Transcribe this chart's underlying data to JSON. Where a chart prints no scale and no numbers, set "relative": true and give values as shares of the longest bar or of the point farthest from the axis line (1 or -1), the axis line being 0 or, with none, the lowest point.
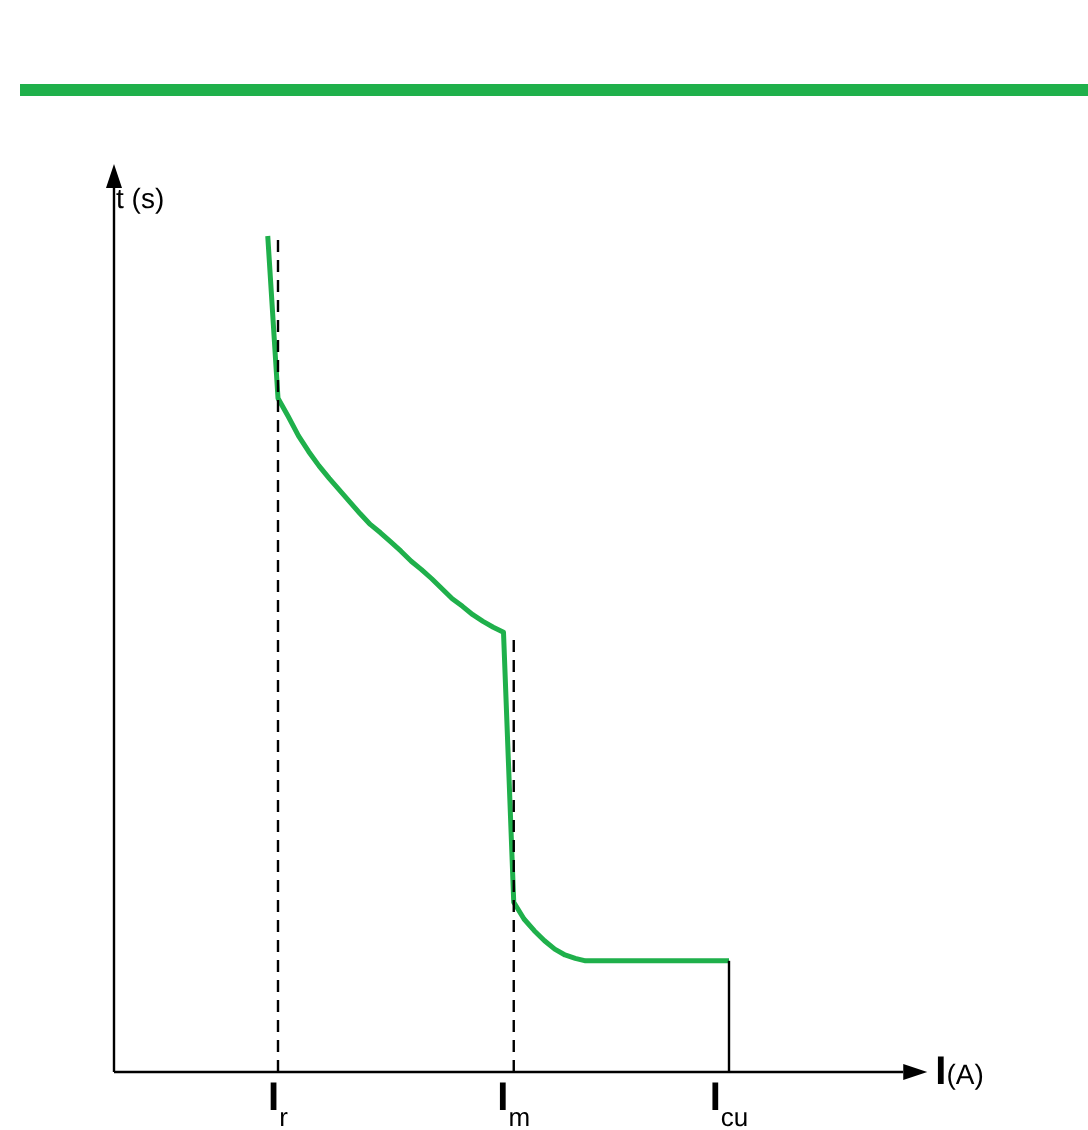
{
  "chart_data": {
    "type": "line",
    "relative": true,
    "xlabel": "I(A)",
    "ylabel": "t (s)",
    "categories": [
      null,
      null,
      null,
      null,
      null,
      null,
      null,
      null,
      null,
      null,
      null,
      null,
      null,
      null,
      null,
      null,
      "I$_{r}$",
      null,
      null,
      null,
      null,
      null,
      null,
      null,
      null,
      null,
      null,
      null,
      null,
      null,
      null,
      null,
      null,
      null,
      null,
      null,
      null,
      null,
      null,
      "I$_{m}$",
      null,
      null,
      null,
      null,
      null,
      null,
      null,
      null,
      null,
      null,
      null,
      null,
      null,
      null,
      null,
      null,
      null,
      null,
      null,
      null,
      "I$_{cu}$",
      null,
      null,
      null,
      null,
      null,
      null,
      null,
      null,
      null,
      null,
      null,
      null,
      null,
      null,
      null,
      null,
      null
    ],
    "series": [
      {
        "color": "#1fb04b",
        "values": [
          null,
          null,
          null,
          null,
          null,
          null,
          null,
          null,
          null,
          null,
          null,
          null,
          null,
          null,
          null,
          1,
          0.806,
          0.784,
          0.761,
          0.742,
          0.725,
          0.71,
          0.696,
          0.682,
          0.668,
          0.655,
          0.645,
          0.634,
          0.623,
          0.611,
          0.601,
          0.59,
          0.578,
          0.566,
          0.557,
          0.547,
          0.539,
          0.532,
          0.526,
          0.203,
          0.183,
          0.169,
          0.157,
          0.147,
          0.14,
          0.136,
          0.133,
          0.133,
          0.133,
          0.133,
          0.133,
          0.133,
          0.133,
          0.133,
          0.133,
          0.133,
          0.133,
          0.133,
          0.133,
          0.133,
          0.133,
          null,
          null,
          null,
          null,
          null,
          null,
          null,
          null,
          null,
          null,
          null,
          null,
          null,
          null,
          null,
          null,
          null
        ]
      }
    ],
    "ref_lines": [
      {
        "axis": "x",
        "value": "I$_{r}$",
        "line_style": "dashed",
        "color": "#000000"
      },
      {
        "axis": "x",
        "value": "I$_{m}$",
        "line_style": "dashed",
        "color": "#000000"
      },
      {
        "axis": "x",
        "value": "I$_{cu}$",
        "line_style": "solid",
        "color": "#000000"
      }
    ],
    "grid": false,
    "legend": false,
    "marker": "none",
    "line_style": "solid"
  }
}
